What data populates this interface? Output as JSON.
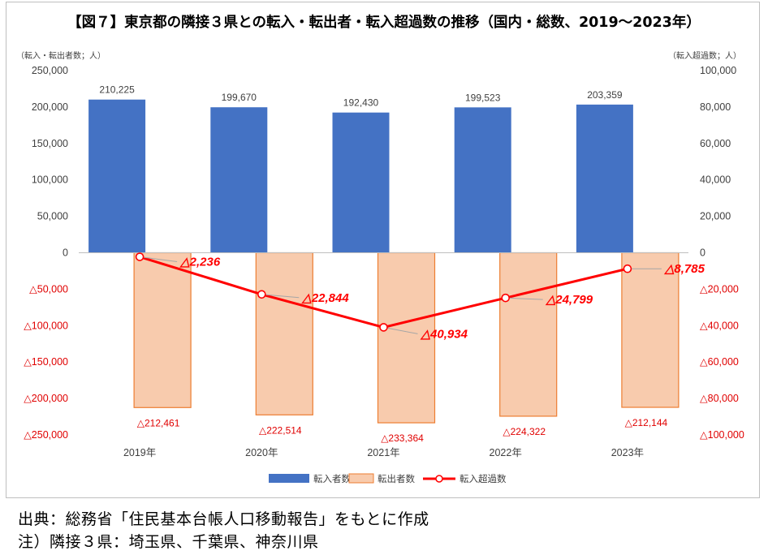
{
  "chart_data": {
    "type": "bar+line",
    "title": "【図７】東京都の隣接３県との転入・転出者・転入超過数の推移（国内・総数、2019～2023年）",
    "ylabel_left": "（転入・転出者数；人）",
    "ylabel_right": "（転入超過数；人）",
    "categories": [
      "2019年",
      "2020年",
      "2021年",
      "2022年",
      "2023年"
    ],
    "ylim_left": [
      -250000,
      250000
    ],
    "ylim_right": [
      -100000,
      100000
    ],
    "yticks_left": [
      "250,000",
      "200,000",
      "150,000",
      "100,000",
      "50,000",
      "0",
      "△50,000",
      "△100,000",
      "△150,000",
      "△200,000",
      "△250,000"
    ],
    "yticks_right": [
      "100,000",
      "80,000",
      "60,000",
      "40,000",
      "20,000",
      "0",
      "△20,000",
      "△40,000",
      "△60,000",
      "△80,000",
      "△100,000"
    ],
    "grid": false,
    "legend_position": "bottom",
    "series": [
      {
        "name": "転入者数",
        "kind": "bar",
        "axis": "left",
        "color": "#4472C4",
        "values": [
          210225,
          199670,
          192430,
          199523,
          203359
        ],
        "labels": [
          "210,225",
          "199,670",
          "192,430",
          "199,523",
          "203,359"
        ]
      },
      {
        "name": "転出者数",
        "kind": "bar",
        "axis": "left",
        "color": "#F8CBAD",
        "edge_color": "#ED7D31",
        "values": [
          -212461,
          -222514,
          -233364,
          -224322,
          -212144
        ],
        "labels": [
          "△212,461",
          "△222,514",
          "△233,364",
          "△224,322",
          "△212,144"
        ]
      },
      {
        "name": "転入超過数",
        "kind": "line",
        "axis": "right",
        "color": "#FF0000",
        "values": [
          -2236,
          -22844,
          -40934,
          -24799,
          -8785
        ],
        "labels": [
          "△2,236",
          "△22,844",
          "△40,934",
          "△24,799",
          "△8,785"
        ]
      }
    ]
  },
  "notes": {
    "source": "出典：総務省「住民基本台帳人口移動報告」をもとに作成",
    "remark": "注）隣接３県：埼玉県、千葉県、神奈川県"
  }
}
